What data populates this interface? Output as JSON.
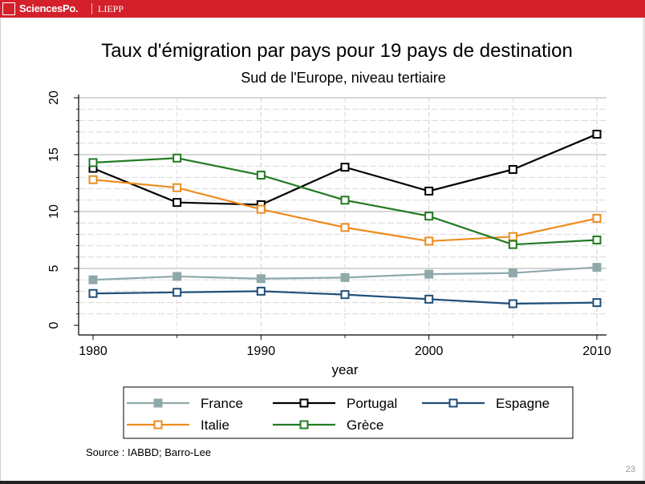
{
  "header": {
    "brand": "SciencesPo.",
    "unit": "LIEPP"
  },
  "slide": {
    "page_number": "23",
    "source": "Source : IABBD; Barro-Lee"
  },
  "chart_data": {
    "type": "line",
    "title": "Taux d'émigration par pays pour 19 pays de destination",
    "subtitle": "Sud de l'Europe, niveau tertiaire",
    "xlabel": "year",
    "ylabel": "",
    "x": [
      1980,
      1985,
      1990,
      1995,
      2000,
      2005,
      2010
    ],
    "xlim": [
      1980,
      2010
    ],
    "ylim": [
      0,
      20
    ],
    "xticks": [
      1980,
      1990,
      2000,
      2010
    ],
    "yticks": [
      0,
      5,
      10,
      15,
      20
    ],
    "xtick_labels": [
      "1980",
      "1990",
      "2000",
      "2010"
    ],
    "ytick_labels": [
      "0",
      "5",
      "10",
      "15",
      "20"
    ],
    "series": [
      {
        "name": "France",
        "color": "#8fa9aa",
        "marker": "filled-square",
        "values": [
          4.0,
          4.3,
          4.1,
          4.2,
          4.5,
          4.6,
          5.1
        ]
      },
      {
        "name": "Portugal",
        "color": "#000000",
        "marker": "hollow-square",
        "values": [
          13.8,
          10.8,
          10.6,
          13.9,
          11.8,
          13.7,
          16.8
        ]
      },
      {
        "name": "Espagne",
        "color": "#1f4f7a",
        "marker": "hollow-square",
        "values": [
          2.8,
          2.9,
          3.0,
          2.7,
          2.3,
          1.9,
          2.0
        ]
      },
      {
        "name": "Italie",
        "color": "#ee8c1e",
        "marker": "hollow-square",
        "values": [
          12.8,
          12.1,
          10.2,
          8.6,
          7.4,
          7.8,
          9.4
        ]
      },
      {
        "name": "Grèce",
        "color": "#237a23",
        "marker": "hollow-square",
        "values": [
          14.3,
          14.7,
          13.2,
          11.0,
          9.6,
          7.1,
          7.5
        ]
      }
    ],
    "legend": {
      "placement": "bottom",
      "columns": 3
    }
  }
}
